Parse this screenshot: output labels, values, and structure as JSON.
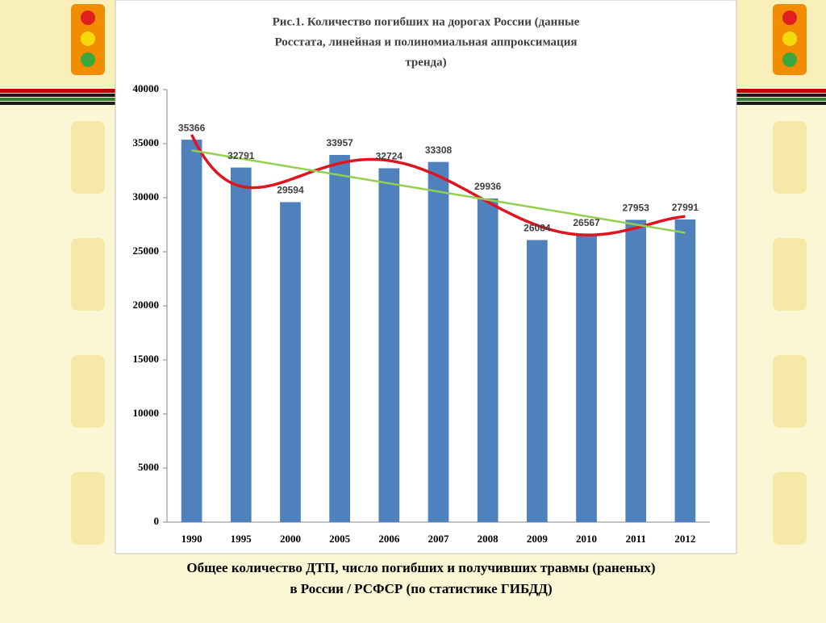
{
  "chart_data": {
    "type": "bar",
    "title": [
      "Рис.1.  Количество погибших на дорогах России (данные",
      "Росстата, линейная  и полиномиальная аппроксимация",
      "тренда)"
    ],
    "categories": [
      "1990",
      "1995",
      "2000",
      "2005",
      "2006",
      "2007",
      "2008",
      "2009",
      "2010",
      "2011",
      "2012"
    ],
    "values": [
      35366,
      32791,
      29594,
      33957,
      32724,
      33308,
      29936,
      26084,
      26567,
      27953,
      27991
    ],
    "color": "#4f81bd",
    "ylim": [
      0,
      40000
    ],
    "yticks": [
      0,
      5000,
      10000,
      15000,
      20000,
      25000,
      30000,
      35000,
      40000
    ],
    "grid": false,
    "linear_trend_color": "#92d050",
    "poly_trend_color": "#e0141e"
  },
  "caption": [
    "Общее количество ДТП, число погибших и получивших травмы (раненых)",
    "в России / РСФСР (по статистике ГИБДД)"
  ]
}
